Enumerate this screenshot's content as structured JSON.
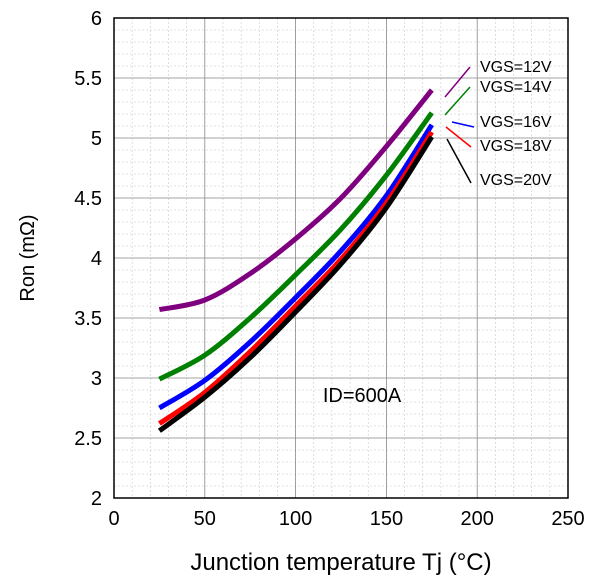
{
  "chart_data": {
    "type": "line",
    "title": "",
    "xlabel": "Junction temperature Tj (°C)",
    "ylabel": "Ron (mΩ)",
    "xlim": [
      0,
      250
    ],
    "ylim": [
      2,
      6
    ],
    "xticks": [
      0,
      50,
      100,
      150,
      200,
      250
    ],
    "xtick_labels": [
      "0",
      "50",
      "100",
      "150",
      "200",
      "250"
    ],
    "yticks": [
      2,
      2.5,
      3,
      3.5,
      4,
      4.5,
      5,
      5.5,
      6
    ],
    "ytick_labels": [
      "2",
      "2.5",
      "3",
      "3.5",
      "4",
      "4.5",
      "5",
      "5.5",
      "6"
    ],
    "grid": "minor",
    "annotation": "ID=600A",
    "series": [
      {
        "name": "VGS=12V",
        "color": "#7f007f",
        "x": [
          25,
          50,
          75,
          100,
          125,
          150,
          175
        ],
        "y": [
          3.57,
          3.65,
          3.87,
          4.16,
          4.5,
          4.93,
          5.4
        ]
      },
      {
        "name": "VGS=14V",
        "color": "#008000",
        "x": [
          25,
          50,
          75,
          100,
          125,
          150,
          175
        ],
        "y": [
          2.99,
          3.19,
          3.5,
          3.86,
          4.24,
          4.69,
          5.21
        ]
      },
      {
        "name": "VGS=16V",
        "color": "#0000ff",
        "x": [
          25,
          50,
          75,
          100,
          125,
          150,
          175
        ],
        "y": [
          2.75,
          2.98,
          3.3,
          3.67,
          4.06,
          4.52,
          5.11
        ]
      },
      {
        "name": "VGS=18V",
        "color": "#ff0000",
        "x": [
          25,
          50,
          75,
          100,
          125,
          150,
          175
        ],
        "y": [
          2.62,
          2.88,
          3.22,
          3.6,
          3.99,
          4.46,
          5.05
        ]
      },
      {
        "name": "VGS=20V",
        "color": "#000000",
        "x": [
          25,
          50,
          75,
          100,
          125,
          150,
          175
        ],
        "y": [
          2.56,
          2.84,
          3.17,
          3.55,
          3.95,
          4.42,
          5.01
        ]
      }
    ]
  }
}
